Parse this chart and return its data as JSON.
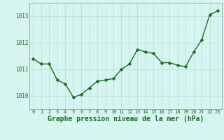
{
  "x": [
    0,
    1,
    2,
    3,
    4,
    5,
    6,
    7,
    8,
    9,
    10,
    11,
    12,
    13,
    14,
    15,
    16,
    17,
    18,
    19,
    20,
    21,
    22,
    23
  ],
  "y": [
    1011.4,
    1011.2,
    1011.2,
    1010.6,
    1010.45,
    1009.95,
    1010.05,
    1010.3,
    1010.55,
    1010.6,
    1010.65,
    1011.0,
    1011.2,
    1011.75,
    1011.65,
    1011.6,
    1011.25,
    1011.25,
    1011.15,
    1011.1,
    1011.65,
    1012.1,
    1013.05,
    1013.2
  ],
  "line_color": "#1a6e1a",
  "marker_color": "#1a6e1a",
  "bg_color": "#d6f5f0",
  "grid_color": "#b0ddd4",
  "xlabel": "Graphe pression niveau de la mer (hPa)",
  "xlabel_color": "#1a6e1a",
  "tick_color": "#1a6e1a",
  "ylim": [
    1009.5,
    1013.5
  ],
  "yticks": [
    1010,
    1011,
    1012,
    1013
  ],
  "xlim": [
    -0.5,
    23.5
  ],
  "xticks": [
    0,
    1,
    2,
    3,
    4,
    5,
    6,
    7,
    8,
    9,
    10,
    11,
    12,
    13,
    14,
    15,
    16,
    17,
    18,
    19,
    20,
    21,
    22,
    23
  ],
  "xtick_labels": [
    "0",
    "1",
    "2",
    "3",
    "4",
    "5",
    "6",
    "7",
    "8",
    "9",
    "10",
    "11",
    "12",
    "13",
    "14",
    "15",
    "16",
    "17",
    "18",
    "19",
    "20",
    "21",
    "22",
    "23"
  ],
  "marker_size": 2.5,
  "line_width": 1.0,
  "xtick_fontsize": 5.0,
  "ytick_fontsize": 5.5,
  "xlabel_fontsize": 7.0,
  "spine_color": "#888888"
}
